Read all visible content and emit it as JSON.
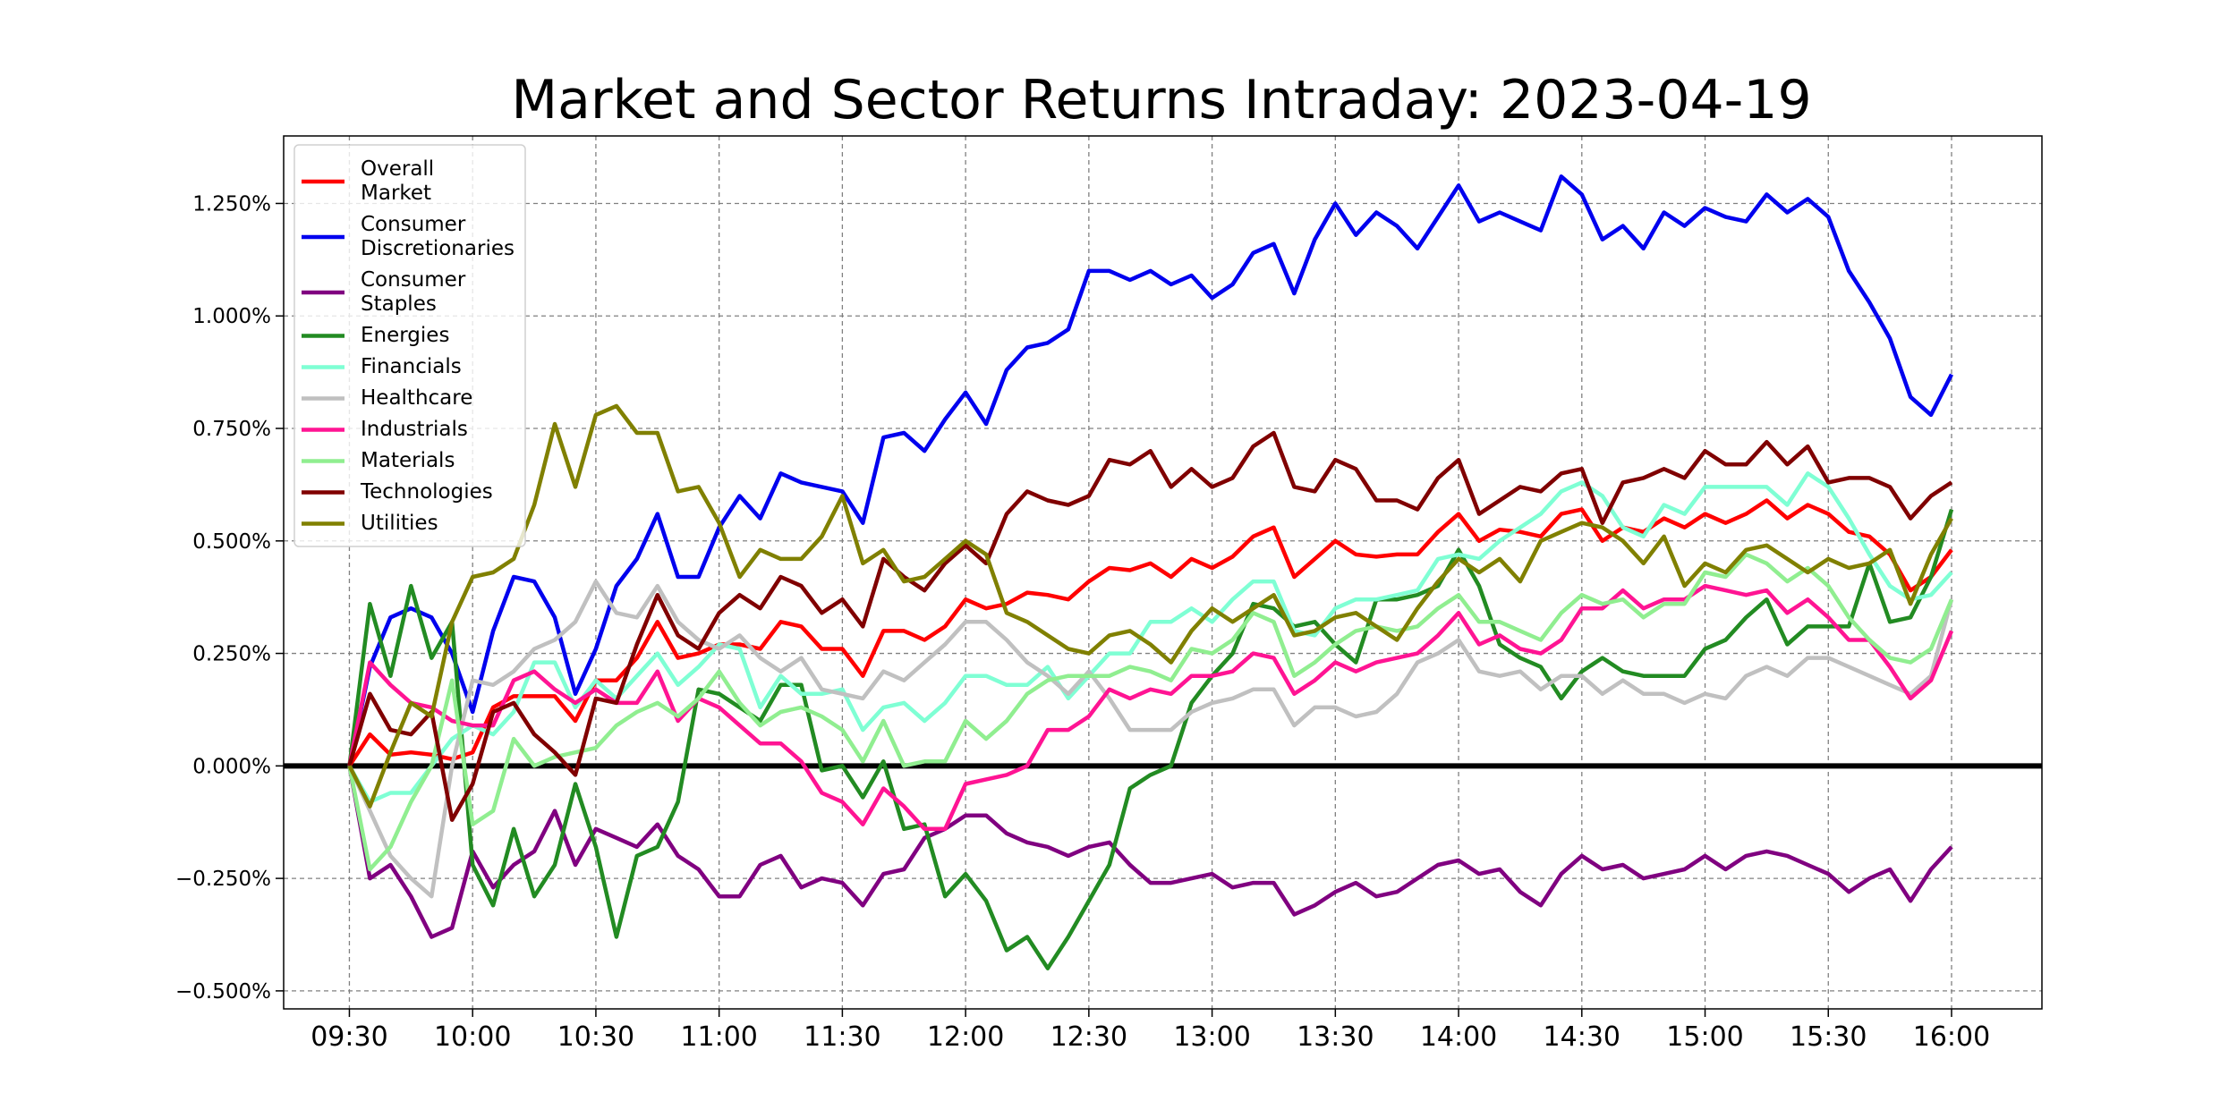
{
  "chart_data": {
    "type": "line",
    "title": "Market and Sector Returns Intraday: 2023-04-19",
    "xlabel": "",
    "ylabel": "",
    "x_tick_labels": [
      "09:30",
      "10:00",
      "10:30",
      "11:00",
      "11:30",
      "12:00",
      "12:30",
      "13:00",
      "13:30",
      "14:00",
      "14:30",
      "15:00",
      "15:30",
      "16:00"
    ],
    "y_tick_labels": [
      "−0.500%",
      "−0.250%",
      "0.000%",
      "0.250%",
      "0.500%",
      "0.750%",
      "1.000%",
      "1.250%"
    ],
    "y_ticks": [
      -0.5,
      -0.25,
      0,
      0.25,
      0.5,
      0.75,
      1.0,
      1.25
    ],
    "ylim": [
      -0.54,
      1.4
    ],
    "xlim_minutes": [
      -16,
      412
    ],
    "x_minutes_per_step": 5,
    "grid": true,
    "legend_position": "upper left",
    "zero_line": true,
    "series": [
      {
        "name": "Overall\nMarket",
        "color": "#ff0000",
        "values": [
          0.0,
          0.07,
          0.025,
          0.03,
          0.025,
          0.015,
          0.03,
          0.13,
          0.155,
          0.155,
          0.155,
          0.1,
          0.19,
          0.19,
          0.24,
          0.32,
          0.24,
          0.25,
          0.27,
          0.27,
          0.26,
          0.32,
          0.31,
          0.26,
          0.26,
          0.2,
          0.3,
          0.3,
          0.28,
          0.31,
          0.37,
          0.35,
          0.36,
          0.385,
          0.38,
          0.37,
          0.41,
          0.44,
          0.435,
          0.45,
          0.42,
          0.46,
          0.44,
          0.465,
          0.51,
          0.53,
          0.42,
          0.46,
          0.5,
          0.47,
          0.465,
          0.47,
          0.47,
          0.52,
          0.56,
          0.5,
          0.525,
          0.52,
          0.51,
          0.56,
          0.57,
          0.5,
          0.53,
          0.52,
          0.55,
          0.53,
          0.56,
          0.54,
          0.56,
          0.59,
          0.55,
          0.58,
          0.56,
          0.52,
          0.51,
          0.47,
          0.39,
          0.42,
          0.48
        ]
      },
      {
        "name": "Consumer\nDiscretionaries",
        "color": "#0000ee",
        "values": [
          0.0,
          0.22,
          0.33,
          0.35,
          0.33,
          0.25,
          0.12,
          0.3,
          0.42,
          0.41,
          0.33,
          0.16,
          0.26,
          0.4,
          0.46,
          0.56,
          0.42,
          0.42,
          0.53,
          0.6,
          0.55,
          0.65,
          0.63,
          0.62,
          0.61,
          0.54,
          0.73,
          0.74,
          0.7,
          0.77,
          0.83,
          0.76,
          0.88,
          0.93,
          0.94,
          0.97,
          1.1,
          1.1,
          1.08,
          1.1,
          1.07,
          1.09,
          1.04,
          1.07,
          1.14,
          1.16,
          1.05,
          1.17,
          1.25,
          1.18,
          1.23,
          1.2,
          1.15,
          1.22,
          1.29,
          1.21,
          1.23,
          1.21,
          1.19,
          1.31,
          1.27,
          1.17,
          1.2,
          1.15,
          1.23,
          1.2,
          1.24,
          1.22,
          1.21,
          1.27,
          1.23,
          1.26,
          1.22,
          1.1,
          1.03,
          0.95,
          0.82,
          0.78,
          0.87
        ]
      },
      {
        "name": "Consumer\nStaples",
        "color": "#800080",
        "values": [
          0.0,
          -0.25,
          -0.22,
          -0.29,
          -0.38,
          -0.36,
          -0.19,
          -0.27,
          -0.22,
          -0.19,
          -0.1,
          -0.22,
          -0.14,
          -0.16,
          -0.18,
          -0.13,
          -0.2,
          -0.23,
          -0.29,
          -0.29,
          -0.22,
          -0.2,
          -0.27,
          -0.25,
          -0.26,
          -0.31,
          -0.24,
          -0.23,
          -0.16,
          -0.14,
          -0.11,
          -0.11,
          -0.15,
          -0.17,
          -0.18,
          -0.2,
          -0.18,
          -0.17,
          -0.22,
          -0.26,
          -0.26,
          -0.25,
          -0.24,
          -0.27,
          -0.26,
          -0.26,
          -0.33,
          -0.31,
          -0.28,
          -0.26,
          -0.29,
          -0.28,
          -0.25,
          -0.22,
          -0.21,
          -0.24,
          -0.23,
          -0.28,
          -0.31,
          -0.24,
          -0.2,
          -0.23,
          -0.22,
          -0.25,
          -0.24,
          -0.23,
          -0.2,
          -0.23,
          -0.2,
          -0.19,
          -0.2,
          -0.22,
          -0.24,
          -0.28,
          -0.25,
          -0.23,
          -0.3,
          -0.23,
          -0.18
        ]
      },
      {
        "name": "Energies",
        "color": "#228b22",
        "values": [
          0.0,
          0.36,
          0.2,
          0.4,
          0.24,
          0.32,
          -0.22,
          -0.31,
          -0.14,
          -0.29,
          -0.22,
          -0.04,
          -0.18,
          -0.38,
          -0.2,
          -0.18,
          -0.08,
          0.17,
          0.16,
          0.13,
          0.1,
          0.18,
          0.18,
          -0.01,
          0.0,
          -0.07,
          0.01,
          -0.14,
          -0.13,
          -0.29,
          -0.24,
          -0.3,
          -0.41,
          -0.38,
          -0.45,
          -0.38,
          -0.3,
          -0.22,
          -0.05,
          -0.02,
          0.0,
          0.14,
          0.2,
          0.25,
          0.36,
          0.35,
          0.31,
          0.32,
          0.27,
          0.23,
          0.37,
          0.37,
          0.38,
          0.4,
          0.48,
          0.4,
          0.27,
          0.24,
          0.22,
          0.15,
          0.21,
          0.24,
          0.21,
          0.2,
          0.2,
          0.2,
          0.26,
          0.28,
          0.33,
          0.37,
          0.27,
          0.31,
          0.31,
          0.31,
          0.45,
          0.32,
          0.33,
          0.42,
          0.57
        ]
      },
      {
        "name": "Financials",
        "color": "#7fffd4",
        "values": [
          0.0,
          -0.08,
          -0.06,
          -0.06,
          0.0,
          0.06,
          0.09,
          0.07,
          0.12,
          0.23,
          0.23,
          0.13,
          0.19,
          0.15,
          0.2,
          0.25,
          0.18,
          0.22,
          0.27,
          0.26,
          0.13,
          0.2,
          0.16,
          0.16,
          0.17,
          0.08,
          0.13,
          0.14,
          0.1,
          0.14,
          0.2,
          0.2,
          0.18,
          0.18,
          0.22,
          0.15,
          0.2,
          0.25,
          0.25,
          0.32,
          0.32,
          0.35,
          0.32,
          0.37,
          0.41,
          0.41,
          0.3,
          0.29,
          0.35,
          0.37,
          0.37,
          0.38,
          0.39,
          0.46,
          0.47,
          0.46,
          0.5,
          0.53,
          0.56,
          0.61,
          0.63,
          0.6,
          0.53,
          0.51,
          0.58,
          0.56,
          0.62,
          0.62,
          0.62,
          0.62,
          0.58,
          0.65,
          0.62,
          0.55,
          0.47,
          0.4,
          0.37,
          0.38,
          0.43
        ]
      },
      {
        "name": "Healthcare",
        "color": "#c0c0c0",
        "values": [
          0.0,
          -0.1,
          -0.2,
          -0.25,
          -0.29,
          0.0,
          0.19,
          0.18,
          0.21,
          0.26,
          0.28,
          0.32,
          0.41,
          0.34,
          0.33,
          0.4,
          0.32,
          0.28,
          0.26,
          0.29,
          0.24,
          0.21,
          0.24,
          0.17,
          0.16,
          0.15,
          0.21,
          0.19,
          0.23,
          0.27,
          0.32,
          0.32,
          0.28,
          0.23,
          0.2,
          0.16,
          0.21,
          0.15,
          0.08,
          0.08,
          0.08,
          0.12,
          0.14,
          0.15,
          0.17,
          0.17,
          0.09,
          0.13,
          0.13,
          0.11,
          0.12,
          0.16,
          0.23,
          0.25,
          0.28,
          0.21,
          0.2,
          0.21,
          0.17,
          0.2,
          0.2,
          0.16,
          0.19,
          0.16,
          0.16,
          0.14,
          0.16,
          0.15,
          0.2,
          0.22,
          0.2,
          0.24,
          0.24,
          0.22,
          0.2,
          0.18,
          0.16,
          0.2,
          0.37
        ]
      },
      {
        "name": "Industrials",
        "color": "#ff1493",
        "values": [
          0.0,
          0.23,
          0.18,
          0.14,
          0.13,
          0.1,
          0.09,
          0.09,
          0.19,
          0.21,
          0.17,
          0.14,
          0.17,
          0.14,
          0.14,
          0.21,
          0.1,
          0.15,
          0.13,
          0.09,
          0.05,
          0.05,
          0.01,
          -0.06,
          -0.08,
          -0.13,
          -0.05,
          -0.09,
          -0.14,
          -0.14,
          -0.04,
          -0.03,
          -0.02,
          0.0,
          0.08,
          0.08,
          0.11,
          0.17,
          0.15,
          0.17,
          0.16,
          0.2,
          0.2,
          0.21,
          0.25,
          0.24,
          0.16,
          0.19,
          0.23,
          0.21,
          0.23,
          0.24,
          0.25,
          0.29,
          0.34,
          0.27,
          0.29,
          0.26,
          0.25,
          0.28,
          0.35,
          0.35,
          0.39,
          0.35,
          0.37,
          0.37,
          0.4,
          0.39,
          0.38,
          0.39,
          0.34,
          0.37,
          0.33,
          0.28,
          0.28,
          0.22,
          0.15,
          0.19,
          0.3
        ]
      },
      {
        "name": "Materials",
        "color": "#90ee90",
        "values": [
          0.0,
          -0.23,
          -0.18,
          -0.08,
          0.0,
          0.19,
          -0.13,
          -0.1,
          0.06,
          0.0,
          0.02,
          0.03,
          0.04,
          0.09,
          0.12,
          0.14,
          0.11,
          0.15,
          0.21,
          0.14,
          0.09,
          0.12,
          0.13,
          0.11,
          0.08,
          0.01,
          0.1,
          0.0,
          0.01,
          0.01,
          0.1,
          0.06,
          0.1,
          0.16,
          0.19,
          0.2,
          0.2,
          0.2,
          0.22,
          0.21,
          0.19,
          0.26,
          0.25,
          0.28,
          0.34,
          0.32,
          0.2,
          0.23,
          0.27,
          0.3,
          0.31,
          0.3,
          0.31,
          0.35,
          0.38,
          0.32,
          0.32,
          0.3,
          0.28,
          0.34,
          0.38,
          0.36,
          0.37,
          0.33,
          0.36,
          0.36,
          0.43,
          0.42,
          0.47,
          0.45,
          0.41,
          0.44,
          0.4,
          0.33,
          0.28,
          0.24,
          0.23,
          0.26,
          0.37
        ]
      },
      {
        "name": "Technologies",
        "color": "#800000",
        "values": [
          0.0,
          0.16,
          0.08,
          0.07,
          0.12,
          -0.12,
          -0.04,
          0.12,
          0.14,
          0.07,
          0.03,
          -0.02,
          0.15,
          0.14,
          0.27,
          0.38,
          0.29,
          0.26,
          0.34,
          0.38,
          0.35,
          0.42,
          0.4,
          0.34,
          0.37,
          0.31,
          0.46,
          0.42,
          0.39,
          0.45,
          0.49,
          0.45,
          0.56,
          0.61,
          0.59,
          0.58,
          0.6,
          0.68,
          0.67,
          0.7,
          0.62,
          0.66,
          0.62,
          0.64,
          0.71,
          0.74,
          0.62,
          0.61,
          0.68,
          0.66,
          0.59,
          0.59,
          0.57,
          0.64,
          0.68,
          0.56,
          0.59,
          0.62,
          0.61,
          0.65,
          0.66,
          0.54,
          0.63,
          0.64,
          0.66,
          0.64,
          0.7,
          0.67,
          0.67,
          0.72,
          0.67,
          0.71,
          0.63,
          0.64,
          0.64,
          0.62,
          0.55,
          0.6,
          0.63
        ]
      },
      {
        "name": "Utilities",
        "color": "#808000",
        "values": [
          0.0,
          -0.09,
          0.03,
          0.14,
          0.11,
          0.32,
          0.42,
          0.43,
          0.46,
          0.58,
          0.76,
          0.62,
          0.78,
          0.8,
          0.74,
          0.74,
          0.61,
          0.62,
          0.54,
          0.42,
          0.48,
          0.46,
          0.46,
          0.51,
          0.6,
          0.45,
          0.48,
          0.41,
          0.42,
          0.46,
          0.5,
          0.47,
          0.34,
          0.32,
          0.29,
          0.26,
          0.25,
          0.29,
          0.3,
          0.27,
          0.23,
          0.3,
          0.35,
          0.32,
          0.35,
          0.38,
          0.29,
          0.3,
          0.33,
          0.34,
          0.31,
          0.28,
          0.35,
          0.41,
          0.46,
          0.43,
          0.46,
          0.41,
          0.5,
          0.52,
          0.54,
          0.53,
          0.5,
          0.45,
          0.51,
          0.4,
          0.45,
          0.43,
          0.48,
          0.49,
          0.46,
          0.43,
          0.46,
          0.44,
          0.45,
          0.48,
          0.36,
          0.47,
          0.55
        ]
      }
    ]
  }
}
